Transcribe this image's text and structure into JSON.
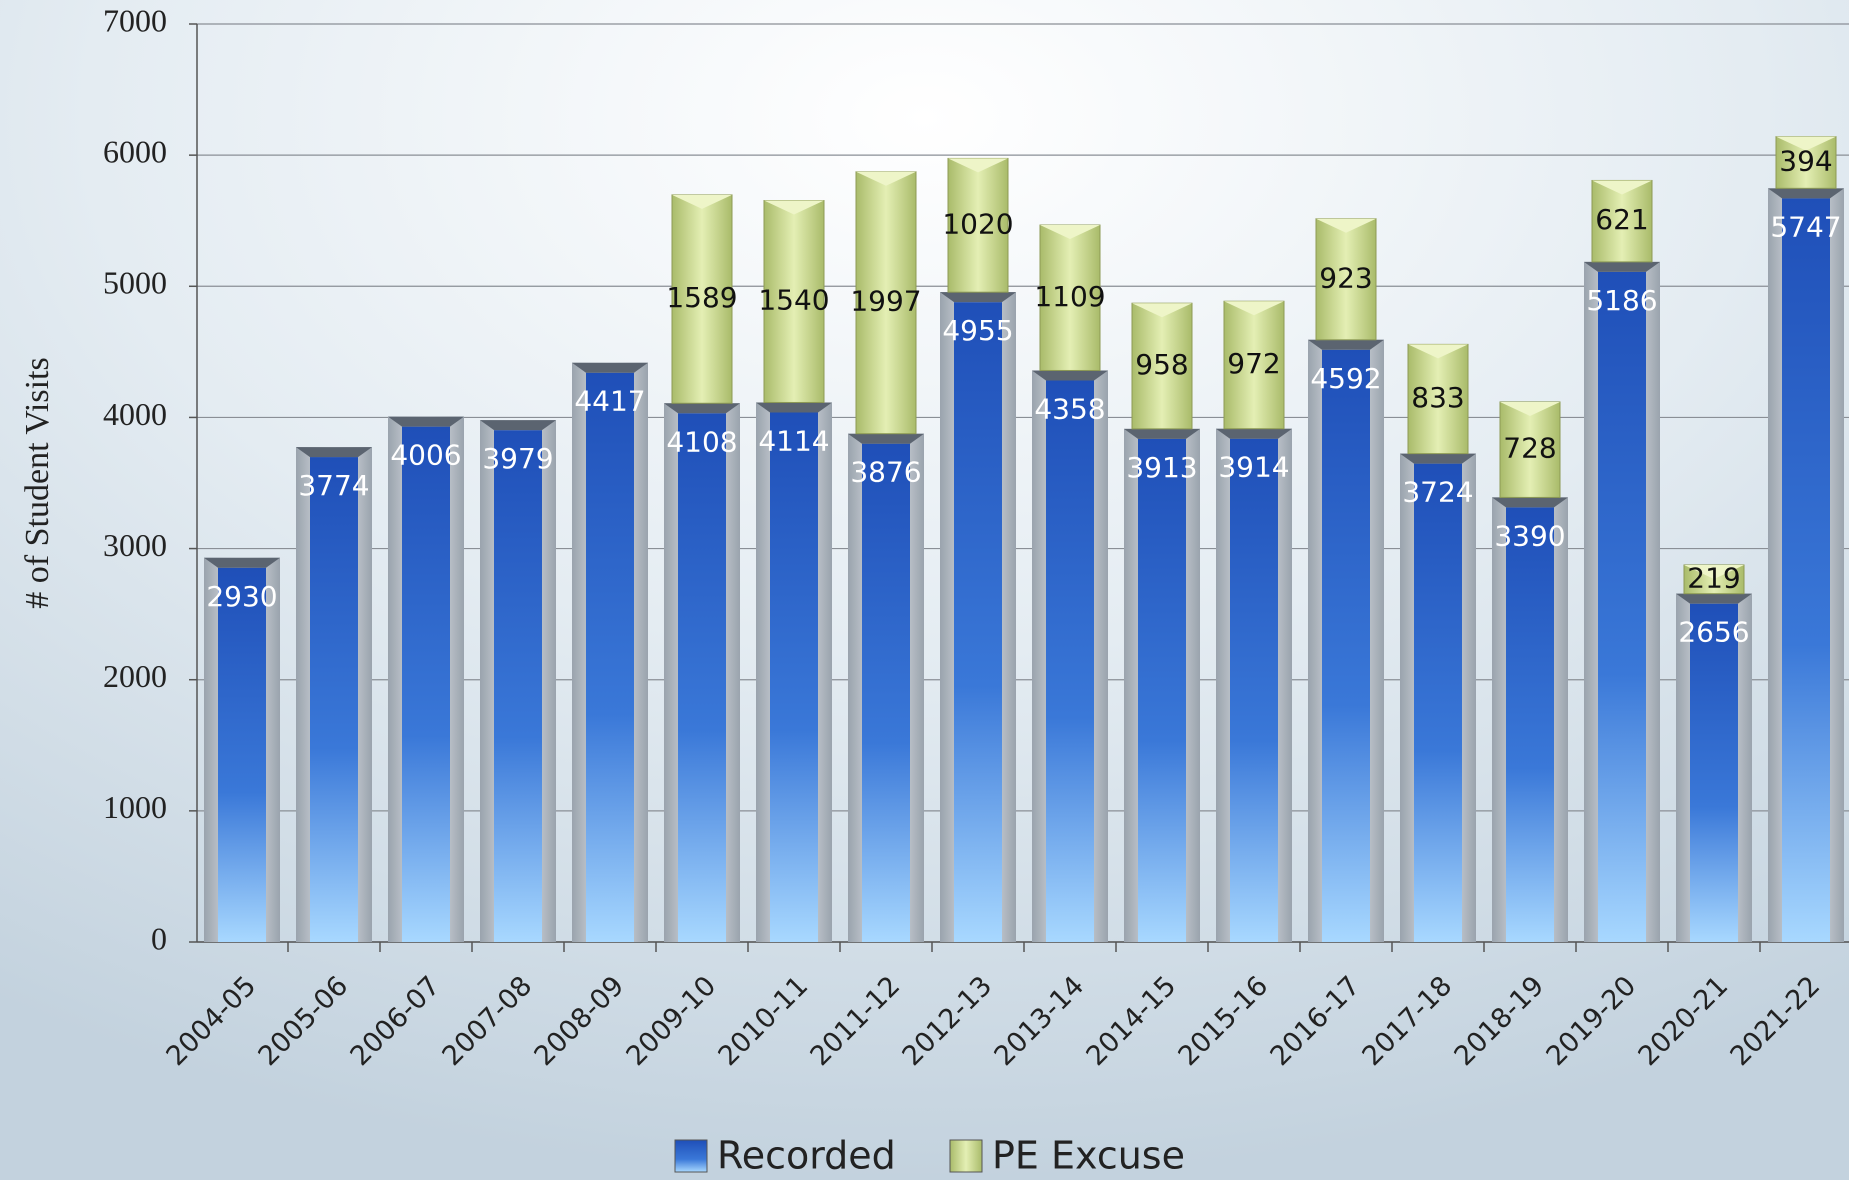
{
  "chart_data": {
    "type": "bar",
    "stacked": true,
    "y_label": "# of Student Visits",
    "categories": [
      "2004-05",
      "2005-06",
      "2006-07",
      "2007-08",
      "2008-09",
      "2009-10",
      "2010-11",
      "2011-12",
      "2012-13",
      "2013-14",
      "2014-15",
      "2015-16",
      "2016-17",
      "2017-18",
      "2018-19",
      "2019-20",
      "2020-21",
      "2021-22"
    ],
    "series": [
      {
        "name": "Recorded",
        "color": "#2f62c8",
        "values": [
          2930,
          3774,
          4006,
          3979,
          4417,
          4108,
          4114,
          3876,
          4955,
          4358,
          3913,
          3914,
          4592,
          3724,
          3390,
          5186,
          2656,
          5747
        ]
      },
      {
        "name": "PE Excuse",
        "color": "#c9d98a",
        "values": [
          null,
          null,
          null,
          null,
          null,
          1589,
          1540,
          1997,
          1020,
          1109,
          958,
          972,
          923,
          833,
          728,
          621,
          219,
          394
        ]
      }
    ],
    "ylim": [
      0,
      7000
    ],
    "yticks": [
      0,
      1000,
      2000,
      3000,
      4000,
      5000,
      6000,
      7000
    ],
    "grid": true,
    "legend": "bottom"
  }
}
